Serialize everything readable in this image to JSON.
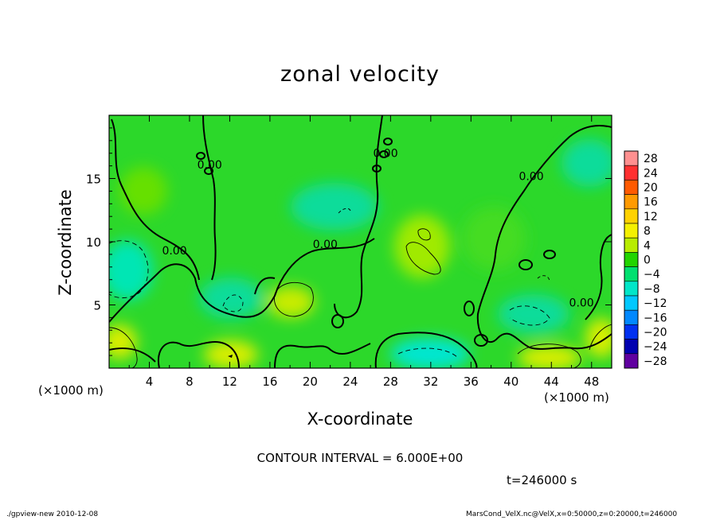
{
  "chart_data": {
    "type": "heatmap",
    "title": "zonal velocity",
    "xlabel": "X-coordinate",
    "ylabel": "Z-coordinate",
    "x_unit": "(×1000 m)",
    "xlim": [
      0,
      50
    ],
    "ylim": [
      0,
      20
    ],
    "x_ticks": [
      "4",
      "8",
      "12",
      "16",
      "20",
      "24",
      "28",
      "32",
      "36",
      "40",
      "44",
      "48"
    ],
    "x_tick_values": [
      4,
      8,
      12,
      16,
      20,
      24,
      28,
      32,
      36,
      40,
      44,
      48
    ],
    "y_ticks": [
      "5",
      "10",
      "15"
    ],
    "y_tick_values": [
      5,
      10,
      15
    ],
    "contour_labels": [
      {
        "text": "0.00",
        "x": 6.5,
        "z": 9.3
      },
      {
        "text": "0.00",
        "x": 10.0,
        "z": 16.1
      },
      {
        "text": "0.00",
        "x": 21.5,
        "z": 9.8
      },
      {
        "text": "0.00",
        "x": 27.5,
        "z": 17.0
      },
      {
        "text": "0.00",
        "x": 42.0,
        "z": 15.2
      },
      {
        "text": "0.00",
        "x": 47.0,
        "z": 5.2
      }
    ],
    "colorbar": {
      "levels": [
        "28",
        "24",
        "20",
        "16",
        "12",
        "8",
        "4",
        "0",
        "−4",
        "−8",
        "−12",
        "−16",
        "−20",
        "−24",
        "−28"
      ],
      "colors": [
        "#ff9090",
        "#ff3030",
        "#ff5a00",
        "#ff9a00",
        "#ffd200",
        "#f4f000",
        "#b8ec00",
        "#22d400",
        "#00e070",
        "#00e6c8",
        "#00c8ff",
        "#0088ff",
        "#0030f0",
        "#0000b0",
        "#6000a0"
      ]
    },
    "contour_interval": "CONTOUR INTERVAL = 6.000E+00",
    "time_label": "t=246000 s"
  },
  "footer": {
    "left": "./gpview-new  2010-12-08",
    "right": "MarsCond_VelX.nc@VelX,x=0:50000,z=0:20000,t=246000"
  }
}
